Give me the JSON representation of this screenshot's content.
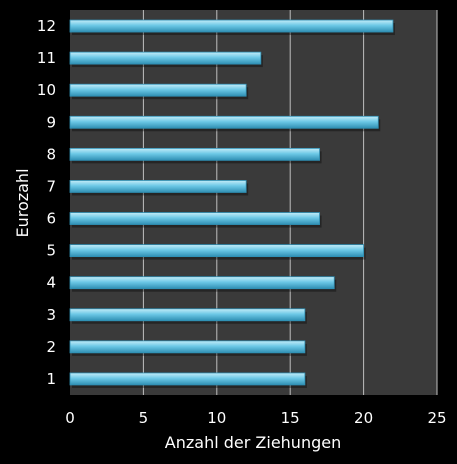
{
  "chart_data": {
    "type": "bar",
    "orientation": "horizontal",
    "categories": [
      "1",
      "2",
      "3",
      "4",
      "5",
      "6",
      "7",
      "8",
      "9",
      "10",
      "11",
      "12"
    ],
    "values": [
      16,
      16,
      16,
      18,
      20,
      17,
      12,
      17,
      21,
      12,
      13,
      22
    ],
    "xlabel": "Anzahl der Ziehungen",
    "ylabel": "Eurozahl",
    "xlim": [
      0,
      25
    ],
    "xticks": [
      "0",
      "5",
      "10",
      "15",
      "20",
      "25"
    ],
    "grid": "vertical",
    "legend": "none",
    "colors": {
      "page_background": "#000000",
      "plot_background": "#3a3a3a",
      "gridline": "#bfbfbf",
      "bar_fill": "#6cc8e6",
      "bar_highlight": "#c4ecf8",
      "bar_shadow": "#2f8fb3",
      "text": "#ffffff"
    }
  }
}
